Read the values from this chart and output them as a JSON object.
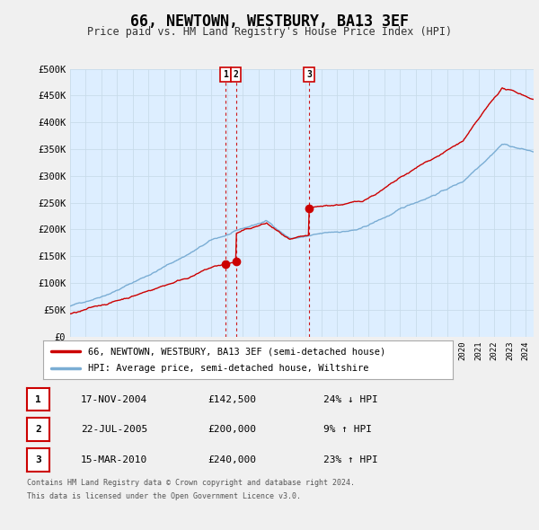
{
  "title": "66, NEWTOWN, WESTBURY, BA13 3EF",
  "subtitle": "Price paid vs. HM Land Registry's House Price Index (HPI)",
  "property_label": "66, NEWTOWN, WESTBURY, BA13 3EF (semi-detached house)",
  "hpi_label": "HPI: Average price, semi-detached house, Wiltshire",
  "property_color": "#cc0000",
  "hpi_color": "#7aadd4",
  "background_color": "#f0f0f0",
  "plot_bg_color": "#ddeeff",
  "ylim": [
    0,
    500000
  ],
  "yticks": [
    0,
    50000,
    100000,
    150000,
    200000,
    250000,
    300000,
    350000,
    400000,
    450000,
    500000
  ],
  "ytick_labels": [
    "£0",
    "£50K",
    "£100K",
    "£150K",
    "£200K",
    "£250K",
    "£300K",
    "£350K",
    "£400K",
    "£450K",
    "£500K"
  ],
  "transactions": [
    {
      "label": "1",
      "date": "17-NOV-2004",
      "price": 142500,
      "price_str": "£142,500",
      "rel": "24% ↓ HPI",
      "x": 2004.88
    },
    {
      "label": "2",
      "date": "22-JUL-2005",
      "price": 200000,
      "price_str": "£200,000",
      "rel": "9% ↑ HPI",
      "x": 2005.55
    },
    {
      "label": "3",
      "date": "15-MAR-2010",
      "price": 240000,
      "price_str": "£240,000",
      "rel": "23% ↑ HPI",
      "x": 2010.21
    }
  ],
  "footer_line1": "Contains HM Land Registry data © Crown copyright and database right 2024.",
  "footer_line2": "This data is licensed under the Open Government Licence v3.0.",
  "xmin": 1995,
  "xmax": 2024.5,
  "vline_color": "#cc0000",
  "grid_color": "#c8dcea"
}
